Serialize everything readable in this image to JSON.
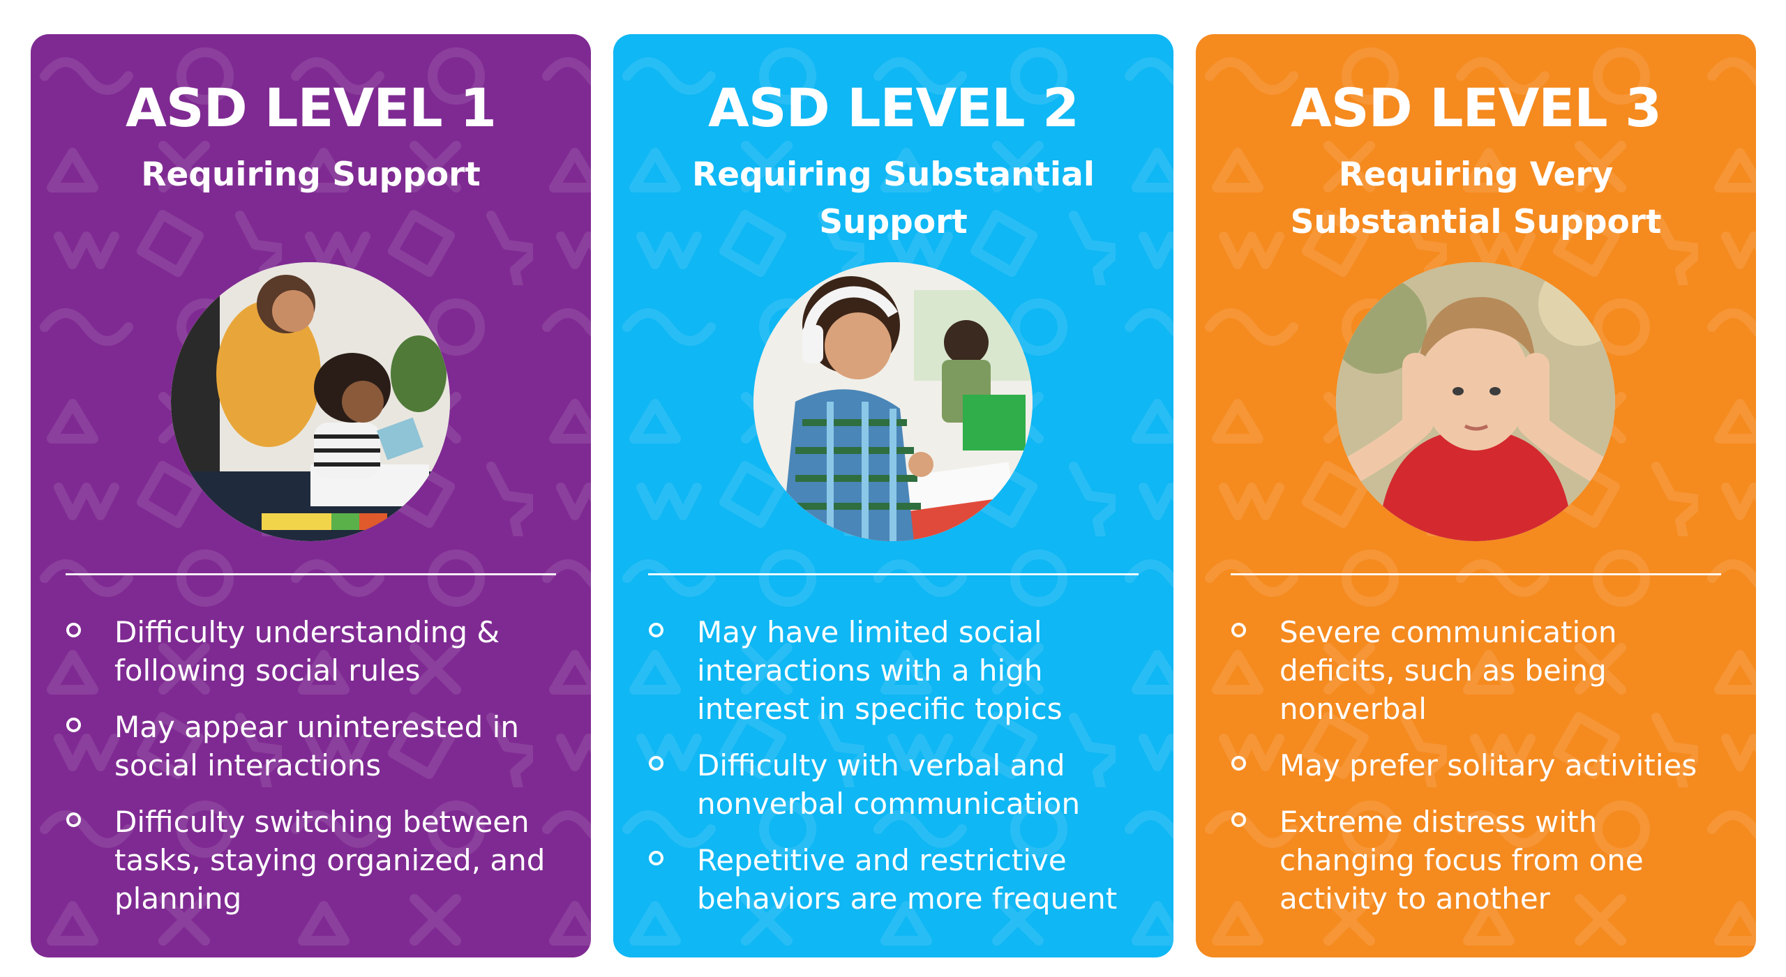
{
  "colors": {
    "level1": "#7f2a92",
    "level2": "#0fb7f4",
    "level3": "#f58a1f"
  },
  "cards": [
    {
      "title": "ASD LEVEL 1",
      "subtitle": "Requiring Support",
      "photo": "teacher-helping-child-photo",
      "bullets": [
        "Difficulty understanding & following social rules",
        "May appear uninterested in social interactions",
        "Difficulty switching between tasks, staying organized, and planning"
      ]
    },
    {
      "title": "ASD LEVEL 2",
      "subtitle": "Requiring Substantial Support",
      "photo": "boy-with-headphones-photo",
      "bullets": [
        "May have limited social interactions with a high interest in specific topics",
        "Difficulty with verbal and nonverbal communication",
        "Repetitive and restrictive behaviors are more frequent"
      ]
    },
    {
      "title": "ASD LEVEL 3",
      "subtitle": "Requiring Very Substantial Support",
      "photo": "boy-covering-ears-photo",
      "bullets": [
        "Severe communication deficits, such as being nonverbal",
        "May prefer solitary activities",
        "Extreme distress with changing focus from one activity to another"
      ]
    }
  ]
}
